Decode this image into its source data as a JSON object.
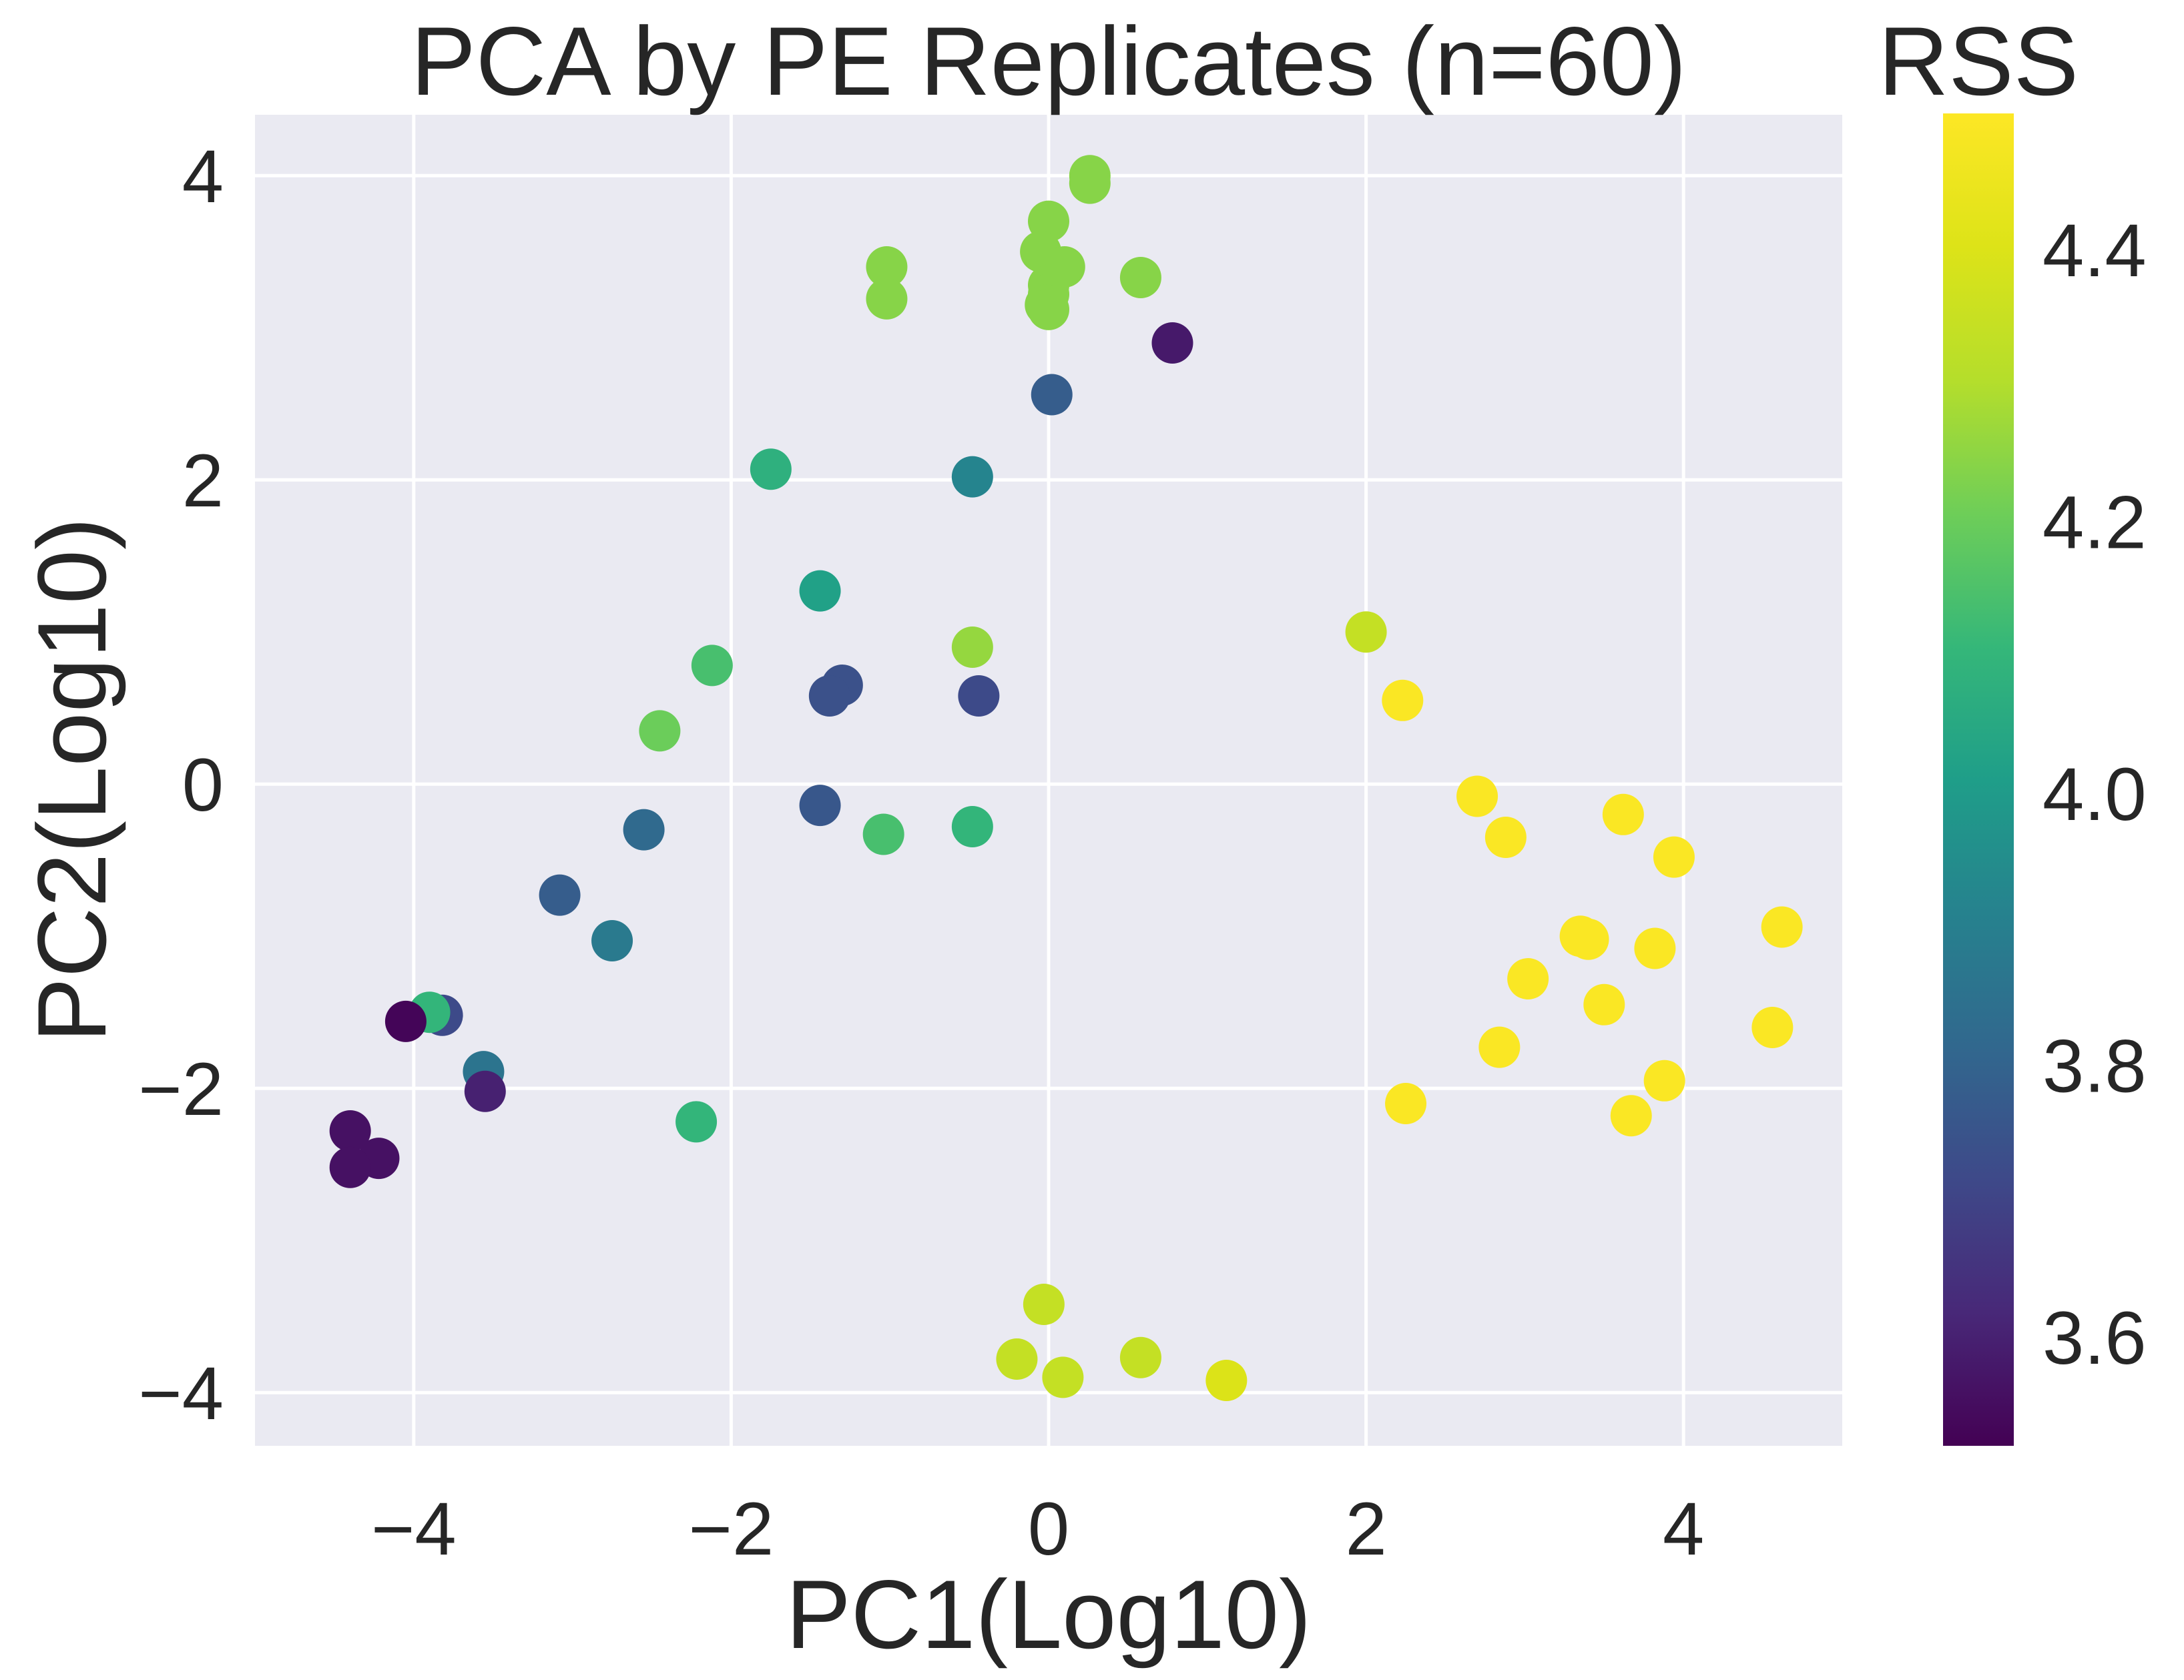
{
  "chart_data": {
    "type": "scatter",
    "title": "PCA by PE Replicates (n=60)",
    "xlabel": "PC1(Log10)",
    "ylabel": "PC2(Log10)",
    "xlim": [
      -5.0,
      5.0
    ],
    "ylim": [
      -4.35,
      4.4
    ],
    "xticks": [
      -4,
      -2,
      0,
      2,
      4
    ],
    "yticks": [
      -4,
      -2,
      0,
      2,
      4
    ],
    "xtick_labels": [
      "−4",
      "−2",
      "0",
      "2",
      "4"
    ],
    "ytick_labels": [
      "−4",
      "−2",
      "0",
      "2",
      "4"
    ],
    "grid": true,
    "colorbar": {
      "label": "RSS",
      "colormap": "viridis",
      "range": [
        3.52,
        4.5
      ],
      "ticks": [
        3.6,
        3.8,
        4.0,
        4.2,
        4.4
      ],
      "tick_labels": [
        "3.6",
        "3.8",
        "4.0",
        "4.2",
        "4.4"
      ]
    },
    "points": [
      {
        "x": 0.26,
        "y": 4.0,
        "c": 4.24
      },
      {
        "x": 0.26,
        "y": 3.95,
        "c": 4.24
      },
      {
        "x": 0.0,
        "y": 3.7,
        "c": 4.24
      },
      {
        "x": -0.05,
        "y": 3.5,
        "c": 4.24
      },
      {
        "x": 0.1,
        "y": 3.4,
        "c": 4.24
      },
      {
        "x": -1.02,
        "y": 3.4,
        "c": 4.24
      },
      {
        "x": 0.58,
        "y": 3.33,
        "c": 4.24
      },
      {
        "x": 0.0,
        "y": 3.28,
        "c": 4.24
      },
      {
        "x": 0.0,
        "y": 3.22,
        "c": 4.24
      },
      {
        "x": -1.02,
        "y": 3.19,
        "c": 4.24
      },
      {
        "x": -0.02,
        "y": 3.15,
        "c": 4.24
      },
      {
        "x": 0.0,
        "y": 3.12,
        "c": 4.24
      },
      {
        "x": 0.78,
        "y": 2.9,
        "c": 3.58
      },
      {
        "x": 0.02,
        "y": 2.56,
        "c": 3.78
      },
      {
        "x": -1.75,
        "y": 2.07,
        "c": 4.08
      },
      {
        "x": -0.48,
        "y": 2.02,
        "c": 3.92
      },
      {
        "x": -1.44,
        "y": 1.27,
        "c": 4.02
      },
      {
        "x": -0.48,
        "y": 0.9,
        "c": 4.26
      },
      {
        "x": -2.12,
        "y": 0.78,
        "c": 4.14
      },
      {
        "x": -1.3,
        "y": 0.65,
        "c": 3.74
      },
      {
        "x": -1.38,
        "y": 0.58,
        "c": 3.74
      },
      {
        "x": -0.44,
        "y": 0.58,
        "c": 3.72
      },
      {
        "x": -2.45,
        "y": 0.35,
        "c": 4.2
      },
      {
        "x": -1.44,
        "y": -0.14,
        "c": 3.76
      },
      {
        "x": -2.55,
        "y": -0.3,
        "c": 3.82
      },
      {
        "x": -1.04,
        "y": -0.33,
        "c": 4.14
      },
      {
        "x": -0.48,
        "y": -0.28,
        "c": 4.1
      },
      {
        "x": -3.08,
        "y": -0.73,
        "c": 3.78
      },
      {
        "x": -2.75,
        "y": -1.03,
        "c": 3.88
      },
      {
        "x": -3.82,
        "y": -1.52,
        "c": 3.72
      },
      {
        "x": -3.9,
        "y": -1.5,
        "c": 4.1
      },
      {
        "x": -4.05,
        "y": -1.56,
        "c": 3.53
      },
      {
        "x": -3.56,
        "y": -1.89,
        "c": 3.86
      },
      {
        "x": -3.55,
        "y": -2.02,
        "c": 3.6
      },
      {
        "x": -2.22,
        "y": -2.22,
        "c": 4.1
      },
      {
        "x": -4.4,
        "y": -2.28,
        "c": 3.56
      },
      {
        "x": -4.22,
        "y": -2.46,
        "c": 3.56
      },
      {
        "x": -4.4,
        "y": -2.52,
        "c": 3.56
      },
      {
        "x": -0.03,
        "y": -3.42,
        "c": 4.34
      },
      {
        "x": -0.2,
        "y": -3.78,
        "c": 4.34
      },
      {
        "x": 0.58,
        "y": -3.77,
        "c": 4.34
      },
      {
        "x": 0.09,
        "y": -3.9,
        "c": 4.34
      },
      {
        "x": 1.12,
        "y": -3.92,
        "c": 4.4
      },
      {
        "x": 2.0,
        "y": 1.0,
        "c": 4.34
      },
      {
        "x": 2.23,
        "y": 0.55,
        "c": 4.49
      },
      {
        "x": 2.7,
        "y": -0.08,
        "c": 4.49
      },
      {
        "x": 2.88,
        "y": -0.35,
        "c": 4.49
      },
      {
        "x": 3.62,
        "y": -0.2,
        "c": 4.49
      },
      {
        "x": 3.94,
        "y": -0.48,
        "c": 4.49
      },
      {
        "x": 4.62,
        "y": -0.94,
        "c": 4.49
      },
      {
        "x": 3.35,
        "y": -1.0,
        "c": 4.49
      },
      {
        "x": 3.4,
        "y": -1.02,
        "c": 4.49
      },
      {
        "x": 3.82,
        "y": -1.08,
        "c": 4.49
      },
      {
        "x": 3.02,
        "y": -1.28,
        "c": 4.49
      },
      {
        "x": 3.5,
        "y": -1.45,
        "c": 4.49
      },
      {
        "x": 4.56,
        "y": -1.6,
        "c": 4.49
      },
      {
        "x": 2.84,
        "y": -1.73,
        "c": 4.49
      },
      {
        "x": 3.88,
        "y": -1.95,
        "c": 4.49
      },
      {
        "x": 2.25,
        "y": -2.1,
        "c": 4.49
      },
      {
        "x": 3.67,
        "y": -2.18,
        "c": 4.49
      }
    ]
  },
  "colors": {
    "plot_background": "#eaeaf2",
    "grid": "#ffffff",
    "text": "#262626"
  }
}
